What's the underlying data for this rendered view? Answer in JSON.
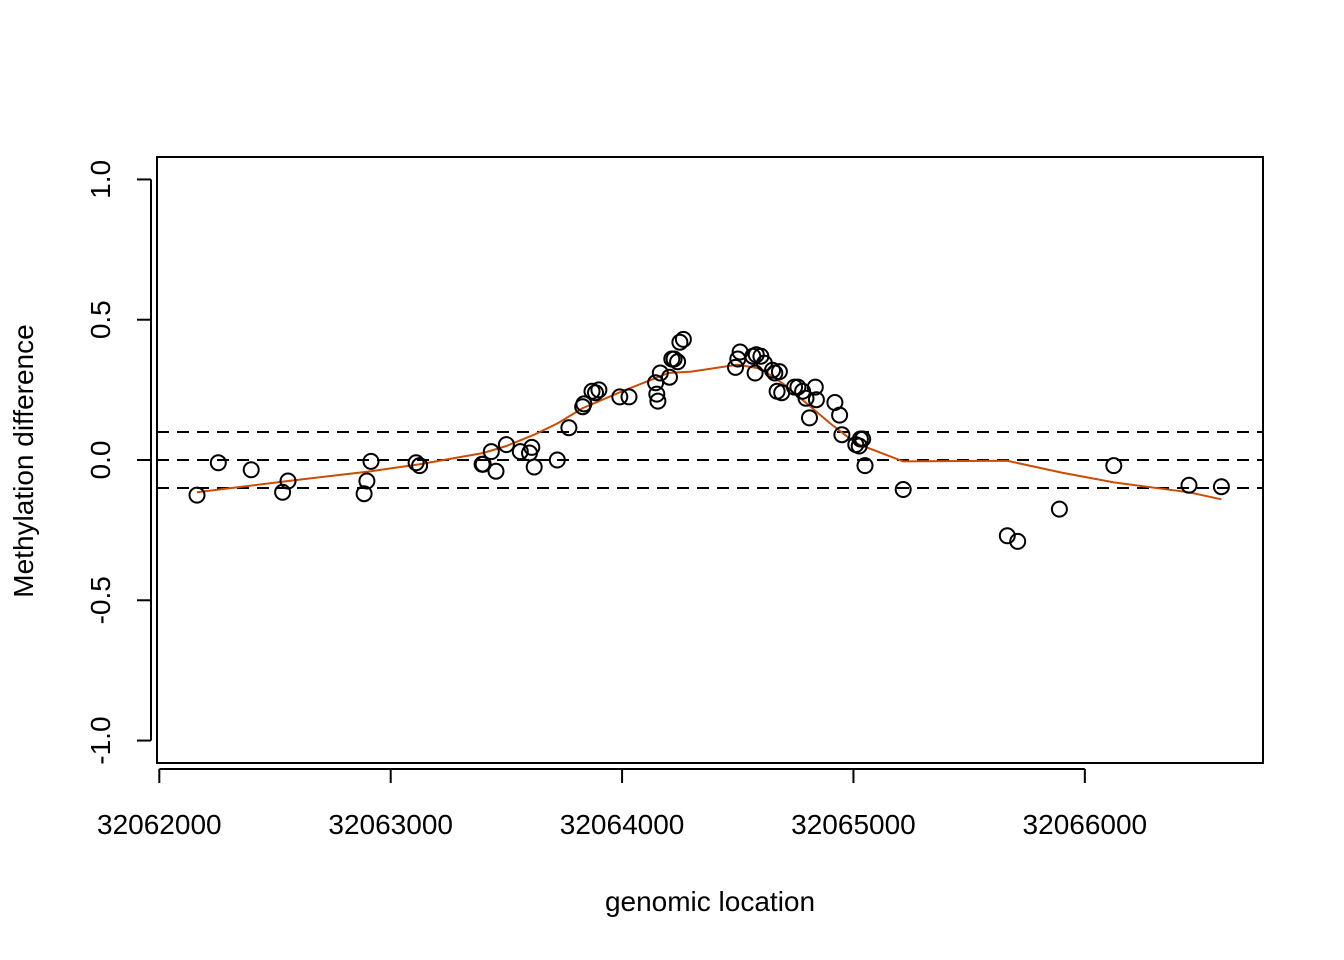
{
  "chart_data": {
    "type": "scatter",
    "title": "",
    "xlabel": "genomic location",
    "ylabel": "Methylation difference",
    "xlim": [
      32061990,
      32066770
    ],
    "ylim": [
      -1.08,
      1.08
    ],
    "xticks": [
      32062000,
      32063000,
      32064000,
      32065000,
      32066000
    ],
    "yticks": [
      -1.0,
      -0.5,
      0.0,
      0.5,
      1.0
    ],
    "xtick_labels": [
      "32062000",
      "32063000",
      "32064000",
      "32065000",
      "32066000"
    ],
    "ytick_labels": [
      "-1.0",
      "-0.5",
      "0.0",
      "0.5",
      "1.0"
    ],
    "grid": false,
    "reference_lines": [
      {
        "y": 0.1,
        "style": "dashed",
        "color": "#000000"
      },
      {
        "y": 0.0,
        "style": "dashed",
        "color": "#000000"
      },
      {
        "y": -0.1,
        "style": "dashed",
        "color": "#000000"
      }
    ],
    "series": [
      {
        "kind": "points",
        "marker": "open-circle",
        "color": "#000000",
        "points": [
          [
            32062163,
            -0.125
          ],
          [
            32062255,
            -0.01
          ],
          [
            32062397,
            -0.035
          ],
          [
            32062533,
            -0.115
          ],
          [
            32062556,
            -0.075
          ],
          [
            32062885,
            -0.12
          ],
          [
            32062897,
            -0.075
          ],
          [
            32062915,
            -0.005
          ],
          [
            32063110,
            -0.01
          ],
          [
            32063125,
            -0.02
          ],
          [
            32063395,
            -0.015
          ],
          [
            32063400,
            -0.015
          ],
          [
            32063435,
            0.03
          ],
          [
            32063455,
            -0.04
          ],
          [
            32063500,
            0.055
          ],
          [
            32063560,
            0.03
          ],
          [
            32063600,
            0.025
          ],
          [
            32063610,
            0.045
          ],
          [
            32063620,
            -0.025
          ],
          [
            32063720,
            0.0
          ],
          [
            32063770,
            0.115
          ],
          [
            32063830,
            0.19
          ],
          [
            32063835,
            0.2
          ],
          [
            32063870,
            0.245
          ],
          [
            32063885,
            0.24
          ],
          [
            32063900,
            0.25
          ],
          [
            32063990,
            0.225
          ],
          [
            32064030,
            0.225
          ],
          [
            32064145,
            0.275
          ],
          [
            32064150,
            0.235
          ],
          [
            32064155,
            0.21
          ],
          [
            32064165,
            0.31
          ],
          [
            32064205,
            0.295
          ],
          [
            32064215,
            0.36
          ],
          [
            32064225,
            0.36
          ],
          [
            32064240,
            0.35
          ],
          [
            32064250,
            0.42
          ],
          [
            32064265,
            0.43
          ],
          [
            32064490,
            0.33
          ],
          [
            32064500,
            0.36
          ],
          [
            32064510,
            0.385
          ],
          [
            32064565,
            0.37
          ],
          [
            32064575,
            0.31
          ],
          [
            32064580,
            0.375
          ],
          [
            32064600,
            0.37
          ],
          [
            32064615,
            0.345
          ],
          [
            32064650,
            0.32
          ],
          [
            32064660,
            0.31
          ],
          [
            32064670,
            0.245
          ],
          [
            32064680,
            0.315
          ],
          [
            32064690,
            0.24
          ],
          [
            32064745,
            0.26
          ],
          [
            32064760,
            0.26
          ],
          [
            32064780,
            0.245
          ],
          [
            32064795,
            0.22
          ],
          [
            32064810,
            0.15
          ],
          [
            32064835,
            0.26
          ],
          [
            32064840,
            0.215
          ],
          [
            32064920,
            0.205
          ],
          [
            32064940,
            0.16
          ],
          [
            32064950,
            0.09
          ],
          [
            32065010,
            0.055
          ],
          [
            32065025,
            0.05
          ],
          [
            32065030,
            0.075
          ],
          [
            32065040,
            0.075
          ],
          [
            32065050,
            -0.02
          ],
          [
            32065215,
            -0.105
          ],
          [
            32065665,
            -0.27
          ],
          [
            32065710,
            -0.29
          ],
          [
            32065890,
            -0.175
          ],
          [
            32066125,
            -0.02
          ],
          [
            32066450,
            -0.09
          ],
          [
            32066590,
            -0.095
          ]
        ]
      },
      {
        "kind": "line",
        "style": "solid",
        "color": "#cc4c02",
        "points": [
          [
            32062163,
            -0.115
          ],
          [
            32062556,
            -0.075
          ],
          [
            32062915,
            -0.04
          ],
          [
            32063125,
            -0.015
          ],
          [
            32063400,
            0.025
          ],
          [
            32063500,
            0.05
          ],
          [
            32063620,
            0.09
          ],
          [
            32063720,
            0.13
          ],
          [
            32063830,
            0.185
          ],
          [
            32064000,
            0.245
          ],
          [
            32064200,
            0.31
          ],
          [
            32064300,
            0.315
          ],
          [
            32064500,
            0.34
          ],
          [
            32064600,
            0.325
          ],
          [
            32064700,
            0.27
          ],
          [
            32064800,
            0.2
          ],
          [
            32064900,
            0.13
          ],
          [
            32065010,
            0.06
          ],
          [
            32065215,
            -0.005
          ],
          [
            32065665,
            -0.003
          ],
          [
            32065900,
            -0.045
          ],
          [
            32066125,
            -0.08
          ],
          [
            32066450,
            -0.115
          ],
          [
            32066590,
            -0.14
          ]
        ]
      }
    ]
  }
}
